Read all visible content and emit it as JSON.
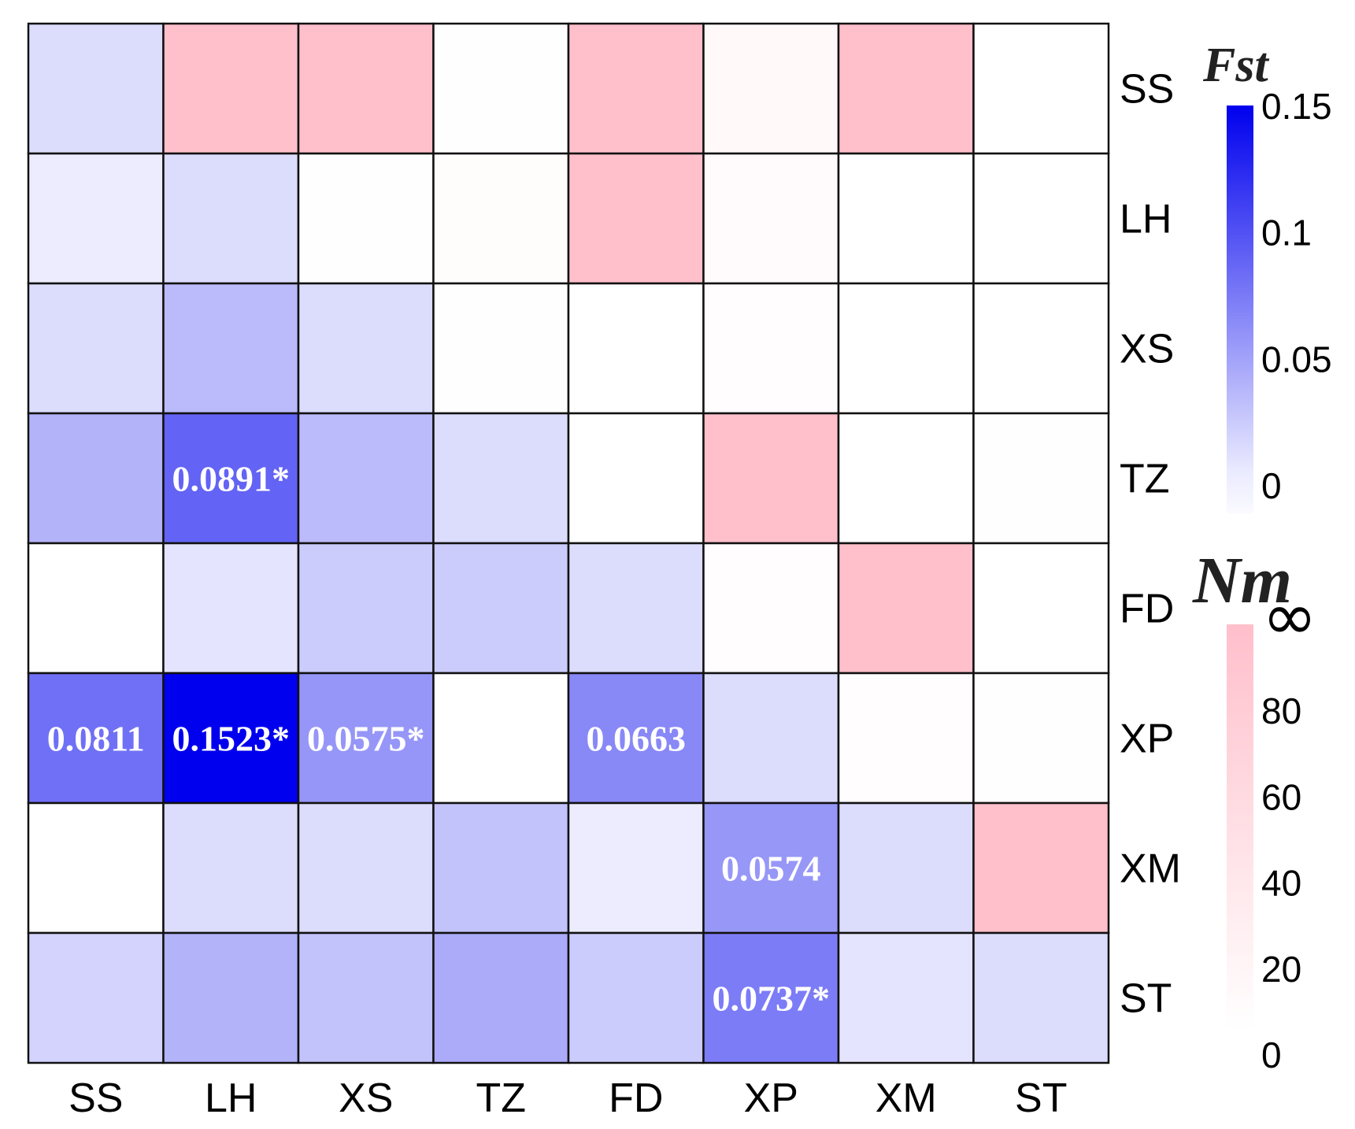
{
  "chart_data": {
    "type": "heatmap",
    "row_labels": [
      "SS",
      "LH",
      "XS",
      "TZ",
      "FD",
      "XP",
      "XM",
      "ST"
    ],
    "col_labels": [
      "SS",
      "LH",
      "XS",
      "TZ",
      "FD",
      "XP",
      "XM",
      "ST"
    ],
    "lower_triangle_measure": "Fst",
    "upper_triangle_measure": "Nm",
    "fst": [
      [
        0.015,
        null,
        null,
        null,
        null,
        null,
        null,
        null
      ],
      [
        0.005,
        0.015,
        null,
        null,
        null,
        null,
        null,
        null
      ],
      [
        0.015,
        0.035,
        0.015,
        null,
        null,
        null,
        null,
        null
      ],
      [
        0.04,
        0.0891,
        0.035,
        0.015,
        null,
        null,
        null,
        null
      ],
      [
        0.0,
        0.01,
        0.025,
        0.025,
        0.015,
        null,
        null,
        null
      ],
      [
        0.0811,
        0.1523,
        0.0575,
        0.0,
        0.0663,
        0.015,
        null,
        null
      ],
      [
        0.0,
        0.015,
        0.015,
        0.03,
        0.005,
        0.0574,
        0.015,
        null
      ],
      [
        0.02,
        0.04,
        0.03,
        0.045,
        0.025,
        0.0737,
        0.01,
        0.015
      ]
    ],
    "fst_labels": [
      {
        "row": 3,
        "col": 1,
        "text": "0.0891*"
      },
      {
        "row": 5,
        "col": 0,
        "text": "0.0811"
      },
      {
        "row": 5,
        "col": 1,
        "text": "0.1523*"
      },
      {
        "row": 5,
        "col": 2,
        "text": "0.0575*"
      },
      {
        "row": 5,
        "col": 4,
        "text": "0.0663"
      },
      {
        "row": 6,
        "col": 5,
        "text": "0.0574"
      },
      {
        "row": 7,
        "col": 5,
        "text": "0.0737*"
      }
    ],
    "nm": [
      [
        null,
        "∞",
        "∞",
        2,
        "∞",
        10,
        "∞",
        0
      ],
      [
        null,
        null,
        2,
        5,
        "∞",
        8,
        0,
        0
      ],
      [
        null,
        null,
        null,
        1,
        0,
        3,
        0,
        0
      ],
      [
        null,
        null,
        null,
        null,
        0,
        "∞",
        0,
        2
      ],
      [
        null,
        null,
        null,
        null,
        null,
        3,
        "∞",
        0
      ],
      [
        null,
        null,
        null,
        null,
        null,
        null,
        3,
        2
      ],
      [
        null,
        null,
        null,
        null,
        null,
        null,
        null,
        "∞"
      ],
      [
        null,
        null,
        null,
        null,
        null,
        null,
        null,
        null
      ]
    ],
    "fst_legend": {
      "title": "Fst",
      "ticks": [
        "0",
        "0.05",
        "0.1",
        "0.15"
      ],
      "range": [
        0,
        0.15
      ]
    },
    "nm_legend": {
      "title": "Nm",
      "ticks": [
        "0",
        "20",
        "40",
        "60",
        "80"
      ],
      "infinity_symbol": "∞",
      "range": [
        0,
        100
      ]
    },
    "colors": {
      "fst_low": "#ffffff",
      "fst_high": "#0000ee",
      "nm_low": "#ffffff",
      "nm_high": "#ffbfcb",
      "grid_line": "#111111"
    }
  }
}
